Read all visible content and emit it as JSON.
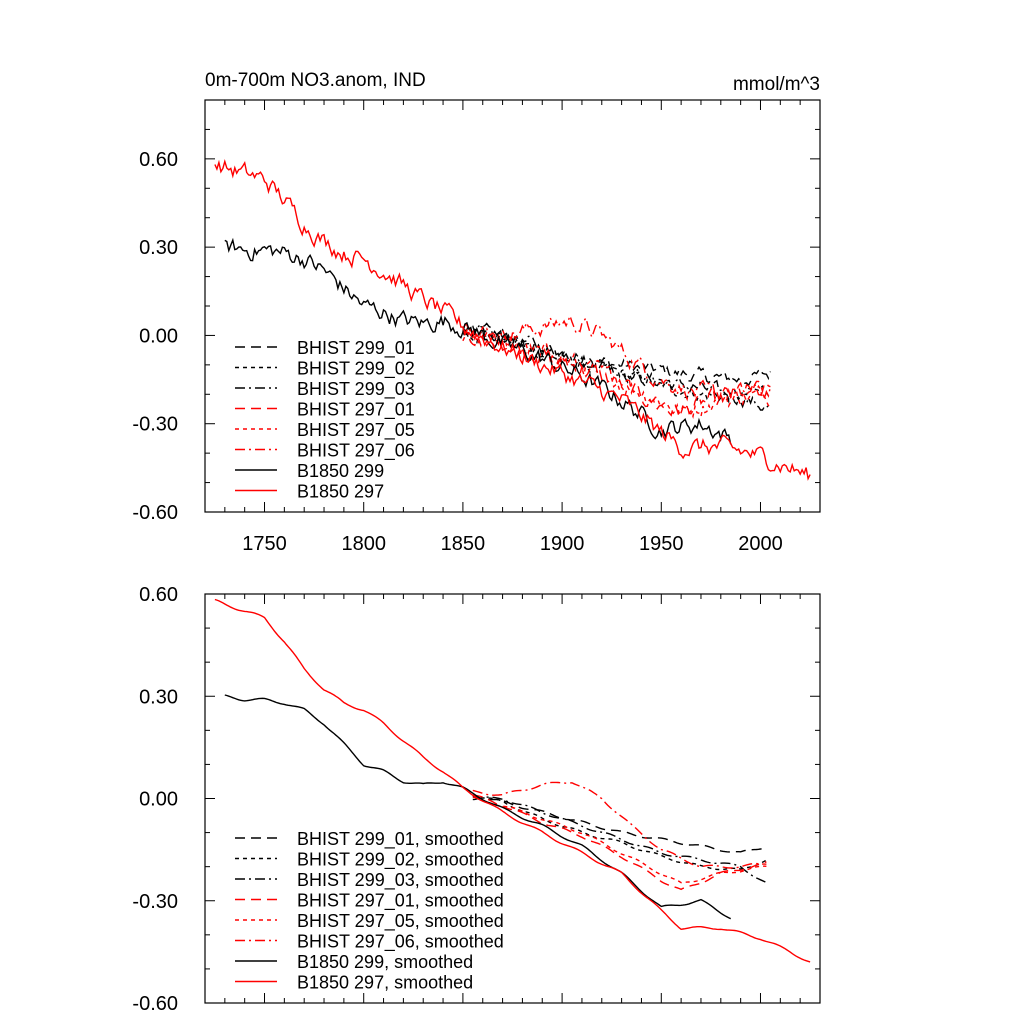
{
  "chart_data": [
    {
      "type": "line",
      "title": "0m-700m NO3.anom, IND",
      "units": "mmol/m^3",
      "xlim": [
        1720,
        2030
      ],
      "ylim": [
        -0.6,
        0.8
      ],
      "x_ticks": [
        1750,
        1800,
        1850,
        1900,
        1950,
        2000
      ],
      "x_tick_labels": [
        "1750",
        "1800",
        "1850",
        "1900",
        "1950",
        "2000"
      ],
      "y_ticks": [
        -0.6,
        -0.3,
        0.0,
        0.3,
        0.6
      ],
      "y_tick_labels": [
        "-0.60",
        "-0.30",
        "0.00",
        "0.30",
        "0.60"
      ],
      "legend_position": "lower-left",
      "series": [
        {
          "name": "BHIST 299_01",
          "color": "#000000",
          "dash": "long-dash",
          "noise": 0.02,
          "x": [
            1850,
            1870,
            1890,
            1910,
            1930,
            1950,
            1970,
            1990,
            2005
          ],
          "y": [
            0.02,
            -0.01,
            -0.05,
            -0.08,
            -0.1,
            -0.12,
            -0.14,
            -0.15,
            -0.13
          ]
        },
        {
          "name": "BHIST 299_02",
          "color": "#000000",
          "dash": "short-dash",
          "noise": 0.02,
          "x": [
            1850,
            1870,
            1890,
            1910,
            1930,
            1950,
            1970,
            1990,
            2005
          ],
          "y": [
            0.02,
            -0.01,
            -0.06,
            -0.1,
            -0.13,
            -0.17,
            -0.2,
            -0.21,
            -0.18
          ]
        },
        {
          "name": "BHIST 299_03",
          "color": "#000000",
          "dash": "dash-dot",
          "noise": 0.02,
          "x": [
            1850,
            1870,
            1890,
            1910,
            1930,
            1950,
            1970,
            1990,
            2005
          ],
          "y": [
            0.01,
            0.0,
            -0.04,
            -0.08,
            -0.12,
            -0.16,
            -0.18,
            -0.21,
            -0.25
          ]
        },
        {
          "name": "BHIST 297_01",
          "color": "#ff0000",
          "dash": "long-dash",
          "noise": 0.025,
          "x": [
            1850,
            1870,
            1890,
            1910,
            1930,
            1950,
            1960,
            1980,
            2005
          ],
          "y": [
            0.01,
            -0.02,
            -0.07,
            -0.11,
            -0.17,
            -0.24,
            -0.26,
            -0.21,
            -0.18
          ]
        },
        {
          "name": "BHIST 297_05",
          "color": "#ff0000",
          "dash": "short-dash",
          "noise": 0.025,
          "x": [
            1850,
            1870,
            1890,
            1910,
            1930,
            1950,
            1960,
            1980,
            2005
          ],
          "y": [
            0.0,
            -0.02,
            -0.06,
            -0.1,
            -0.16,
            -0.22,
            -0.26,
            -0.22,
            -0.2
          ]
        },
        {
          "name": "BHIST 297_06",
          "color": "#ff0000",
          "dash": "dash-dot",
          "noise": 0.025,
          "x": [
            1850,
            1870,
            1890,
            1905,
            1920,
            1935,
            1950,
            1970,
            1990,
            2005
          ],
          "y": [
            0.02,
            0.0,
            0.03,
            0.05,
            0.0,
            -0.08,
            -0.15,
            -0.2,
            -0.2,
            -0.19
          ]
        },
        {
          "name": "B1850 299",
          "color": "#000000",
          "dash": "solid",
          "noise": 0.025,
          "x": [
            1730,
            1740,
            1750,
            1760,
            1770,
            1780,
            1790,
            1800,
            1810,
            1820,
            1830,
            1840,
            1850,
            1870,
            1890,
            1910,
            1930,
            1950,
            1970,
            1985
          ],
          "y": [
            0.3,
            0.29,
            0.29,
            0.28,
            0.26,
            0.22,
            0.16,
            0.1,
            0.08,
            0.05,
            0.04,
            0.05,
            0.03,
            -0.03,
            -0.08,
            -0.14,
            -0.22,
            -0.32,
            -0.3,
            -0.35
          ]
        },
        {
          "name": "B1850 297",
          "color": "#ff0000",
          "dash": "solid",
          "noise": 0.025,
          "x": [
            1725,
            1740,
            1750,
            1760,
            1770,
            1780,
            1790,
            1800,
            1810,
            1820,
            1830,
            1840,
            1850,
            1870,
            1890,
            1910,
            1930,
            1950,
            1960,
            1980,
            2000,
            2015,
            2025
          ],
          "y": [
            0.58,
            0.55,
            0.53,
            0.46,
            0.38,
            0.32,
            0.28,
            0.26,
            0.22,
            0.17,
            0.12,
            0.08,
            0.03,
            -0.04,
            -0.1,
            -0.16,
            -0.22,
            -0.33,
            -0.38,
            -0.38,
            -0.41,
            -0.45,
            -0.48
          ]
        }
      ]
    },
    {
      "type": "line",
      "title": "",
      "units": "",
      "xlim": [
        1720,
        2030
      ],
      "ylim": [
        -0.6,
        0.6
      ],
      "x_ticks": [
        1750,
        1800,
        1850,
        1900,
        1950,
        2000
      ],
      "x_tick_labels": [],
      "y_ticks": [
        -0.6,
        -0.3,
        0.0,
        0.3,
        0.6
      ],
      "y_tick_labels": [
        "-0.60",
        "-0.30",
        "0.00",
        "0.30",
        "0.60"
      ],
      "legend_position": "lower-left",
      "series": [
        {
          "name": "BHIST 299_01, smoothed",
          "color": "#000000",
          "dash": "long-dash",
          "x": [
            1855,
            1870,
            1890,
            1910,
            1930,
            1950,
            1970,
            1990,
            2003
          ],
          "y": [
            0.01,
            -0.01,
            -0.04,
            -0.07,
            -0.1,
            -0.12,
            -0.14,
            -0.16,
            -0.14
          ]
        },
        {
          "name": "BHIST 299_02, smoothed",
          "color": "#000000",
          "dash": "short-dash",
          "x": [
            1855,
            1870,
            1890,
            1910,
            1930,
            1950,
            1970,
            1990,
            2003
          ],
          "y": [
            0.01,
            -0.01,
            -0.06,
            -0.1,
            -0.13,
            -0.17,
            -0.2,
            -0.21,
            -0.18
          ]
        },
        {
          "name": "BHIST 299_03, smoothed",
          "color": "#000000",
          "dash": "dash-dot",
          "x": [
            1855,
            1870,
            1890,
            1910,
            1930,
            1950,
            1970,
            1990,
            2003
          ],
          "y": [
            0.0,
            0.0,
            -0.04,
            -0.08,
            -0.12,
            -0.16,
            -0.18,
            -0.2,
            -0.25
          ]
        },
        {
          "name": "BHIST 297_01, smoothed",
          "color": "#ff0000",
          "dash": "long-dash",
          "x": [
            1855,
            1870,
            1890,
            1910,
            1930,
            1950,
            1960,
            1980,
            2003
          ],
          "y": [
            0.01,
            -0.02,
            -0.07,
            -0.11,
            -0.17,
            -0.24,
            -0.27,
            -0.22,
            -0.19
          ]
        },
        {
          "name": "BHIST 297_05, smoothed",
          "color": "#ff0000",
          "dash": "short-dash",
          "x": [
            1855,
            1870,
            1890,
            1910,
            1930,
            1950,
            1960,
            1980,
            2003
          ],
          "y": [
            0.0,
            -0.02,
            -0.06,
            -0.1,
            -0.16,
            -0.22,
            -0.25,
            -0.22,
            -0.2
          ]
        },
        {
          "name": "BHIST 297_06, smoothed",
          "color": "#ff0000",
          "dash": "dash-dot",
          "x": [
            1855,
            1870,
            1890,
            1905,
            1920,
            1935,
            1950,
            1970,
            1990,
            2003
          ],
          "y": [
            0.02,
            0.01,
            0.04,
            0.05,
            0.0,
            -0.08,
            -0.15,
            -0.2,
            -0.2,
            -0.19
          ]
        },
        {
          "name": "B1850 299, smoothed",
          "color": "#000000",
          "dash": "solid",
          "x": [
            1730,
            1740,
            1750,
            1760,
            1770,
            1780,
            1790,
            1800,
            1810,
            1820,
            1830,
            1840,
            1850,
            1870,
            1890,
            1910,
            1930,
            1950,
            1970,
            1985
          ],
          "y": [
            0.3,
            0.29,
            0.29,
            0.28,
            0.26,
            0.22,
            0.16,
            0.1,
            0.08,
            0.05,
            0.04,
            0.05,
            0.03,
            -0.03,
            -0.08,
            -0.14,
            -0.22,
            -0.32,
            -0.3,
            -0.35
          ]
        },
        {
          "name": "B1850 297, smoothed",
          "color": "#ff0000",
          "dash": "solid",
          "x": [
            1725,
            1740,
            1750,
            1760,
            1770,
            1780,
            1790,
            1800,
            1810,
            1820,
            1830,
            1840,
            1850,
            1870,
            1890,
            1910,
            1930,
            1950,
            1960,
            1980,
            2000,
            2015,
            2025
          ],
          "y": [
            0.58,
            0.55,
            0.53,
            0.46,
            0.38,
            0.32,
            0.28,
            0.26,
            0.22,
            0.17,
            0.12,
            0.08,
            0.03,
            -0.04,
            -0.1,
            -0.16,
            -0.22,
            -0.33,
            -0.38,
            -0.38,
            -0.41,
            -0.45,
            -0.48
          ]
        }
      ]
    }
  ]
}
